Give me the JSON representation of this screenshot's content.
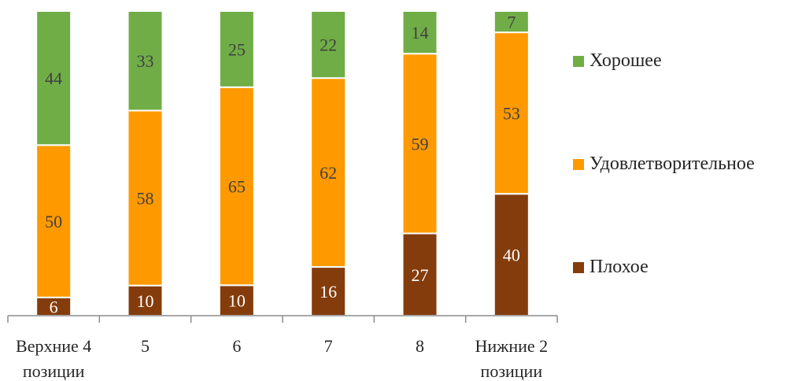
{
  "chart_data": {
    "type": "bar",
    "stacked": true,
    "normalized": true,
    "categories": [
      [
        "Верхние 4",
        "позиции"
      ],
      [
        "5"
      ],
      [
        "6"
      ],
      [
        "7"
      ],
      [
        "8"
      ],
      [
        "Нижние 2",
        "позиции"
      ]
    ],
    "series": [
      {
        "name": "Плохое",
        "color": "#843C0C",
        "values": [
          6,
          10,
          10,
          16,
          27,
          40
        ]
      },
      {
        "name": "Удовлетворительное",
        "color": "#FF9900",
        "values": [
          50,
          58,
          65,
          62,
          59,
          53
        ]
      },
      {
        "name": "Хорошее",
        "color": "#70AD47",
        "values": [
          44,
          33,
          25,
          22,
          14,
          7
        ]
      }
    ],
    "legend_order": [
      2,
      1,
      0
    ],
    "legend_position": "right",
    "grid": false,
    "ylim": [
      0,
      100
    ]
  }
}
